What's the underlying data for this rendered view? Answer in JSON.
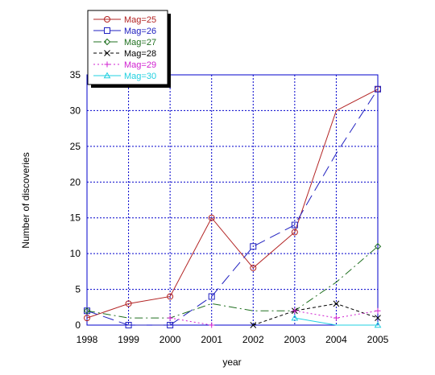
{
  "chart_data": {
    "type": "line",
    "xlabel": "year",
    "ylabel": "Number of discoveries",
    "x": [
      1998,
      1999,
      2000,
      2001,
      2002,
      2003,
      2004,
      2005
    ],
    "xlim": [
      1998,
      2005
    ],
    "ylim": [
      0,
      35
    ],
    "yticks": [
      0,
      5,
      10,
      15,
      20,
      25,
      30,
      35
    ],
    "grid": true,
    "legend_position": "top-left, outside plot",
    "series": [
      {
        "name": "Mag=25",
        "color": "#b22222",
        "dash": "solid",
        "marker": "circle",
        "values": [
          1,
          3,
          4,
          15,
          8,
          13,
          30,
          33
        ]
      },
      {
        "name": "Mag=26",
        "color": "#2020c0",
        "dash": "longdash",
        "marker": "square",
        "values": [
          2,
          0,
          0,
          4,
          11,
          14,
          24,
          33
        ]
      },
      {
        "name": "Mag=27",
        "color": "#207020",
        "dash": "dashdot",
        "marker": "diamond",
        "values": [
          2,
          1,
          1,
          3,
          2,
          2,
          6,
          11
        ]
      },
      {
        "name": "Mag=28",
        "color": "#000000",
        "dash": "dash",
        "marker": "x",
        "values": [
          null,
          null,
          null,
          null,
          0,
          2,
          3,
          1
        ]
      },
      {
        "name": "Mag=29",
        "color": "#d020d0",
        "dash": "dot",
        "marker": "plus",
        "values": [
          null,
          null,
          1,
          0,
          null,
          2,
          1,
          2
        ]
      },
      {
        "name": "Mag=30",
        "color": "#20d0e0",
        "dash": "solid",
        "marker": "triangle",
        "values": [
          null,
          null,
          null,
          null,
          null,
          1,
          0,
          0
        ]
      }
    ]
  }
}
